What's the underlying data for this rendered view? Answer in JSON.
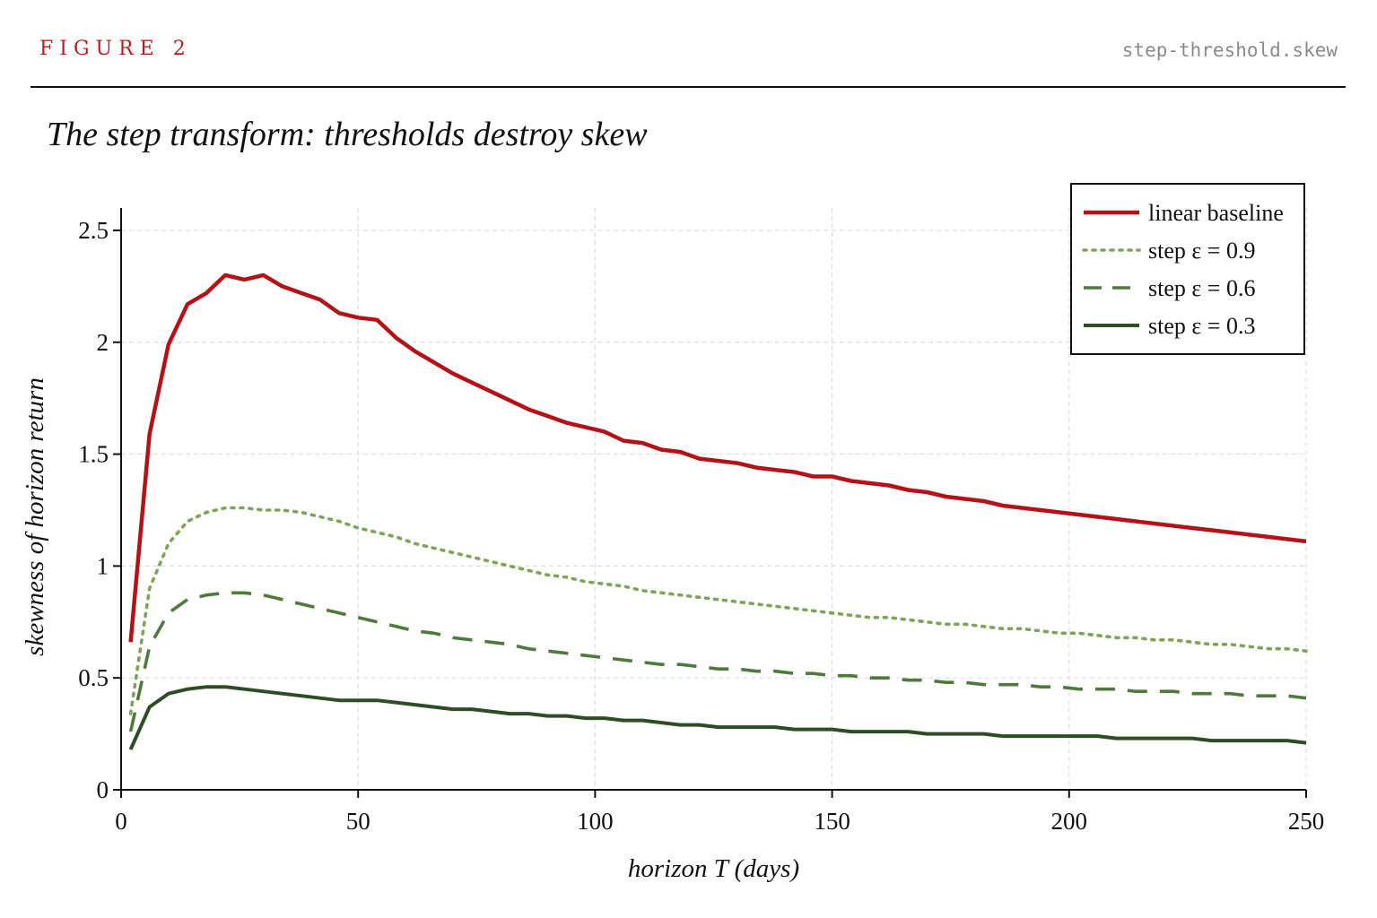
{
  "header": {
    "figure_label": "FIGURE 2",
    "file_name": "step-threshold.skew",
    "title": "The step transform: thresholds destroy skew"
  },
  "chart_data": {
    "type": "line",
    "title": "The step transform: thresholds destroy skew",
    "xlabel": "horizon T (days)",
    "ylabel": "skewness of horizon return",
    "xlim": [
      0,
      250
    ],
    "ylim": [
      0,
      2.6
    ],
    "xticks": [
      0,
      50,
      100,
      150,
      200,
      250
    ],
    "xtick_labels": [
      "0",
      "50",
      "100",
      "150",
      "200",
      "250"
    ],
    "yticks": [
      0,
      0.5,
      1,
      1.5,
      2,
      2.5
    ],
    "ytick_labels": [
      "0",
      "0.5",
      "1",
      "1.5",
      "2",
      "2.5"
    ],
    "grid": true,
    "legend_position": "top-right",
    "colors": {
      "linear": "#b31217",
      "eps09": "#7fa458",
      "eps06": "#4f7a3c",
      "eps03": "#2e4d24"
    },
    "series": [
      {
        "name": "linear baseline",
        "style": "solid",
        "color": "#b31217",
        "x": [
          2,
          6,
          10,
          14,
          18,
          22,
          26,
          30,
          34,
          38,
          42,
          46,
          50,
          54,
          58,
          62,
          66,
          70,
          74,
          78,
          82,
          86,
          90,
          94,
          98,
          102,
          106,
          110,
          114,
          118,
          122,
          126,
          130,
          134,
          138,
          142,
          146,
          150,
          154,
          158,
          162,
          166,
          170,
          174,
          178,
          182,
          186,
          190,
          194,
          198,
          202,
          206,
          210,
          214,
          218,
          222,
          226,
          230,
          234,
          238,
          242,
          246,
          250
        ],
        "y": [
          0.66,
          1.59,
          1.99,
          2.17,
          2.22,
          2.3,
          2.28,
          2.3,
          2.25,
          2.22,
          2.19,
          2.13,
          2.11,
          2.1,
          2.02,
          1.96,
          1.91,
          1.86,
          1.82,
          1.78,
          1.74,
          1.7,
          1.67,
          1.64,
          1.62,
          1.6,
          1.56,
          1.55,
          1.52,
          1.51,
          1.48,
          1.47,
          1.46,
          1.44,
          1.43,
          1.42,
          1.4,
          1.4,
          1.38,
          1.37,
          1.36,
          1.34,
          1.33,
          1.31,
          1.3,
          1.29,
          1.27,
          1.26,
          1.25,
          1.24,
          1.23,
          1.22,
          1.21,
          1.2,
          1.19,
          1.18,
          1.17,
          1.16,
          1.15,
          1.14,
          1.13,
          1.12,
          1.11
        ]
      },
      {
        "name": "step  ε = 0.9",
        "style": "dotted",
        "color": "#7fa458",
        "x": [
          2,
          6,
          10,
          14,
          18,
          22,
          26,
          30,
          34,
          38,
          42,
          46,
          50,
          54,
          58,
          62,
          66,
          70,
          74,
          78,
          82,
          86,
          90,
          94,
          98,
          102,
          106,
          110,
          114,
          118,
          122,
          126,
          130,
          134,
          138,
          142,
          146,
          150,
          154,
          158,
          162,
          166,
          170,
          174,
          178,
          182,
          186,
          190,
          194,
          198,
          202,
          206,
          210,
          214,
          218,
          222,
          226,
          230,
          234,
          238,
          242,
          246,
          250
        ],
        "y": [
          0.34,
          0.9,
          1.1,
          1.2,
          1.24,
          1.26,
          1.26,
          1.25,
          1.25,
          1.24,
          1.22,
          1.2,
          1.17,
          1.15,
          1.13,
          1.1,
          1.08,
          1.06,
          1.04,
          1.02,
          1.0,
          0.98,
          0.96,
          0.95,
          0.93,
          0.92,
          0.91,
          0.89,
          0.88,
          0.87,
          0.86,
          0.85,
          0.84,
          0.83,
          0.82,
          0.81,
          0.8,
          0.79,
          0.78,
          0.77,
          0.77,
          0.76,
          0.75,
          0.74,
          0.74,
          0.73,
          0.72,
          0.72,
          0.71,
          0.7,
          0.7,
          0.69,
          0.68,
          0.68,
          0.67,
          0.67,
          0.66,
          0.65,
          0.65,
          0.64,
          0.63,
          0.63,
          0.62
        ]
      },
      {
        "name": "step  ε = 0.6",
        "style": "dashed",
        "color": "#4f7a3c",
        "x": [
          2,
          6,
          10,
          14,
          18,
          22,
          26,
          30,
          34,
          38,
          42,
          46,
          50,
          54,
          58,
          62,
          66,
          70,
          74,
          78,
          82,
          86,
          90,
          94,
          98,
          102,
          106,
          110,
          114,
          118,
          122,
          126,
          130,
          134,
          138,
          142,
          146,
          150,
          154,
          158,
          162,
          166,
          170,
          174,
          178,
          182,
          186,
          190,
          194,
          198,
          202,
          206,
          210,
          214,
          218,
          222,
          226,
          230,
          234,
          238,
          242,
          246,
          250
        ],
        "y": [
          0.26,
          0.64,
          0.79,
          0.85,
          0.87,
          0.88,
          0.88,
          0.87,
          0.85,
          0.83,
          0.81,
          0.79,
          0.77,
          0.75,
          0.73,
          0.71,
          0.7,
          0.68,
          0.67,
          0.66,
          0.65,
          0.63,
          0.62,
          0.61,
          0.6,
          0.59,
          0.58,
          0.57,
          0.56,
          0.56,
          0.55,
          0.54,
          0.54,
          0.53,
          0.53,
          0.52,
          0.52,
          0.51,
          0.51,
          0.5,
          0.5,
          0.49,
          0.49,
          0.48,
          0.48,
          0.47,
          0.47,
          0.47,
          0.46,
          0.46,
          0.45,
          0.45,
          0.45,
          0.44,
          0.44,
          0.44,
          0.43,
          0.43,
          0.43,
          0.42,
          0.42,
          0.42,
          0.41
        ]
      },
      {
        "name": "step  ε = 0.3",
        "style": "solid",
        "color": "#2e4d24",
        "x": [
          2,
          6,
          10,
          14,
          18,
          22,
          26,
          30,
          34,
          38,
          42,
          46,
          50,
          54,
          58,
          62,
          66,
          70,
          74,
          78,
          82,
          86,
          90,
          94,
          98,
          102,
          106,
          110,
          114,
          118,
          122,
          126,
          130,
          134,
          138,
          142,
          146,
          150,
          154,
          158,
          162,
          166,
          170,
          174,
          178,
          182,
          186,
          190,
          194,
          198,
          202,
          206,
          210,
          214,
          218,
          222,
          226,
          230,
          234,
          238,
          242,
          246,
          250
        ],
        "y": [
          0.18,
          0.37,
          0.43,
          0.45,
          0.46,
          0.46,
          0.45,
          0.44,
          0.43,
          0.42,
          0.41,
          0.4,
          0.4,
          0.4,
          0.39,
          0.38,
          0.37,
          0.36,
          0.36,
          0.35,
          0.34,
          0.34,
          0.33,
          0.33,
          0.32,
          0.32,
          0.31,
          0.31,
          0.3,
          0.29,
          0.29,
          0.28,
          0.28,
          0.28,
          0.28,
          0.27,
          0.27,
          0.27,
          0.26,
          0.26,
          0.26,
          0.26,
          0.25,
          0.25,
          0.25,
          0.25,
          0.24,
          0.24,
          0.24,
          0.24,
          0.24,
          0.24,
          0.23,
          0.23,
          0.23,
          0.23,
          0.23,
          0.22,
          0.22,
          0.22,
          0.22,
          0.22,
          0.21
        ]
      }
    ]
  }
}
